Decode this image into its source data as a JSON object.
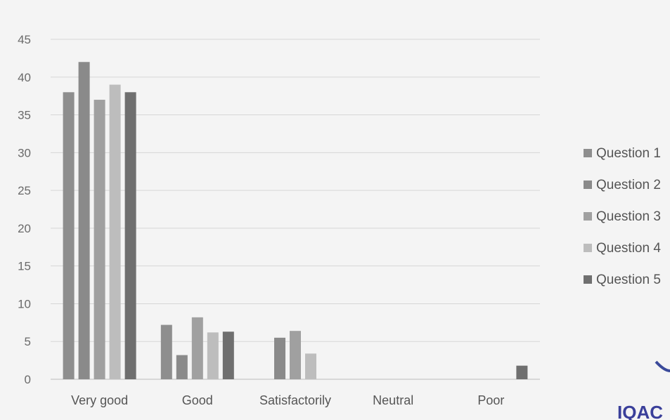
{
  "chart_data": {
    "type": "bar",
    "categories": [
      "Very good",
      "Good",
      "Satisfactorily",
      "Neutral",
      "Poor"
    ],
    "series": [
      {
        "name": "Question 1",
        "values": [
          38,
          7.2,
          0,
          0,
          0
        ],
        "color": "#8e8e8e"
      },
      {
        "name": "Question 2",
        "values": [
          42,
          3.2,
          5.5,
          0,
          0
        ],
        "color": "#8a8a8a"
      },
      {
        "name": "Question 3",
        "values": [
          37,
          8.2,
          6.4,
          0,
          0
        ],
        "color": "#a0a0a0"
      },
      {
        "name": "Question 4",
        "values": [
          39,
          6.2,
          3.4,
          0,
          0
        ],
        "color": "#bdbdbd"
      },
      {
        "name": "Question 5",
        "values": [
          38,
          6.3,
          0,
          0,
          1.8
        ],
        "color": "#6f6f6f"
      }
    ],
    "ylim": [
      0,
      45
    ],
    "yticks": [
      0,
      5,
      10,
      15,
      20,
      25,
      30,
      35,
      40,
      45
    ],
    "grid": true,
    "legend_position": "right",
    "title": "",
    "xlabel": "",
    "ylabel": ""
  },
  "stamp_text": "IQAC"
}
